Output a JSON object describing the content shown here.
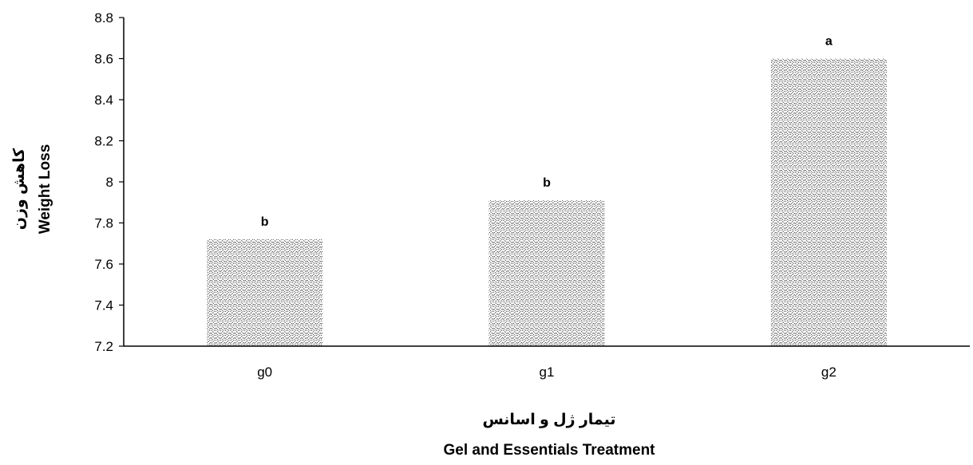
{
  "chart_data": {
    "type": "bar",
    "categories": [
      "g0",
      "g1",
      "g2"
    ],
    "values": [
      7.72,
      7.91,
      8.6
    ],
    "significance_letters": [
      "b",
      "b",
      "a"
    ],
    "ylim": [
      7.2,
      8.8
    ],
    "yticks": [
      7.2,
      7.4,
      7.6,
      7.8,
      8,
      8.2,
      8.4,
      8.6,
      8.8
    ],
    "ytick_labels": [
      "7.2",
      "7.4",
      "7.6",
      "7.8",
      "8",
      "8.2",
      "8.4",
      "8.6",
      "8.8"
    ],
    "ylabel_fa": "کاهش وزن",
    "ylabel_en": "Weight Loss",
    "xlabel_fa": "تیمار ژل و اسانس",
    "xlabel_en": "Gel and Essentials Treatment",
    "grid": false,
    "legend": "none",
    "bar_pattern": "dotted-hatch",
    "colors": {
      "bar_fill_base": "#ffffff",
      "bar_pattern_ink": "#555555",
      "axis": "#000000"
    }
  }
}
